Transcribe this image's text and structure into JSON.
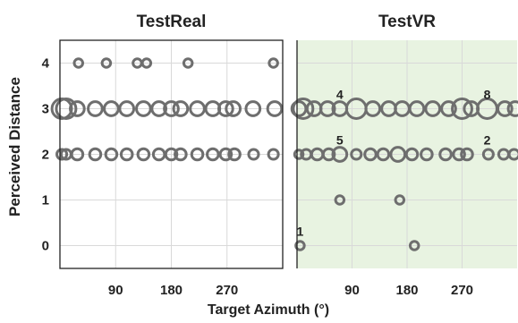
{
  "chart_data": {
    "type": "scatter",
    "ylabel": "Perceived Distance",
    "xlabel": "Target Azimuth (°)",
    "x_ticks": [
      "90",
      "180",
      "270"
    ],
    "y_ticks": [
      "0",
      "1",
      "2",
      "3",
      "4"
    ],
    "xlim": [
      0,
      360
    ],
    "ylim": [
      -0.5,
      4.5
    ],
    "grid": true,
    "marker_color": "#6e6e6e",
    "panels": [
      {
        "title": "TestReal",
        "background": "#ffffff",
        "points": [
          {
            "x": 30,
            "y": 4,
            "size": 1
          },
          {
            "x": 75,
            "y": 4,
            "size": 1
          },
          {
            "x": 125,
            "y": 4,
            "size": 1
          },
          {
            "x": 140,
            "y": 4,
            "size": 1
          },
          {
            "x": 207,
            "y": 4,
            "size": 1
          },
          {
            "x": 345,
            "y": 4,
            "size": 1
          },
          {
            "x": 3,
            "y": 3,
            "size": 5
          },
          {
            "x": 10,
            "y": 3,
            "size": 5
          },
          {
            "x": 28,
            "y": 3,
            "size": 3
          },
          {
            "x": 57,
            "y": 3,
            "size": 3
          },
          {
            "x": 83,
            "y": 3,
            "size": 3
          },
          {
            "x": 108,
            "y": 3,
            "size": 3
          },
          {
            "x": 135,
            "y": 3,
            "size": 3
          },
          {
            "x": 160,
            "y": 3,
            "size": 3
          },
          {
            "x": 180,
            "y": 3,
            "size": 3
          },
          {
            "x": 195,
            "y": 3,
            "size": 3
          },
          {
            "x": 222,
            "y": 3,
            "size": 3
          },
          {
            "x": 247,
            "y": 3,
            "size": 3
          },
          {
            "x": 268,
            "y": 3,
            "size": 3
          },
          {
            "x": 280,
            "y": 3,
            "size": 3
          },
          {
            "x": 312,
            "y": 3,
            "size": 3
          },
          {
            "x": 347,
            "y": 3,
            "size": 3
          },
          {
            "x": 3,
            "y": 2,
            "size": 1.5
          },
          {
            "x": 10,
            "y": 2,
            "size": 1.5
          },
          {
            "x": 28,
            "y": 2,
            "size": 2
          },
          {
            "x": 57,
            "y": 2,
            "size": 2
          },
          {
            "x": 83,
            "y": 2,
            "size": 2
          },
          {
            "x": 108,
            "y": 2,
            "size": 2
          },
          {
            "x": 135,
            "y": 2,
            "size": 2
          },
          {
            "x": 160,
            "y": 2,
            "size": 2
          },
          {
            "x": 180,
            "y": 2,
            "size": 2
          },
          {
            "x": 195,
            "y": 2,
            "size": 2
          },
          {
            "x": 222,
            "y": 2,
            "size": 2
          },
          {
            "x": 247,
            "y": 2,
            "size": 2
          },
          {
            "x": 268,
            "y": 2,
            "size": 2
          },
          {
            "x": 282,
            "y": 2,
            "size": 2
          },
          {
            "x": 313,
            "y": 2,
            "size": 1.5
          },
          {
            "x": 345,
            "y": 2,
            "size": 1.5
          }
        ],
        "annotations": []
      },
      {
        "title": "TestVR",
        "background": "#e8f3e1",
        "points": [
          {
            "x": 3,
            "y": 3,
            "size": 3
          },
          {
            "x": 10,
            "y": 3,
            "size": 5
          },
          {
            "x": 28,
            "y": 3,
            "size": 3
          },
          {
            "x": 50,
            "y": 3,
            "size": 3
          },
          {
            "x": 70,
            "y": 3,
            "size": 3
          },
          {
            "x": 97,
            "y": 3,
            "size": 5
          },
          {
            "x": 124,
            "y": 3,
            "size": 3
          },
          {
            "x": 150,
            "y": 3,
            "size": 3
          },
          {
            "x": 172,
            "y": 3,
            "size": 3
          },
          {
            "x": 196,
            "y": 3,
            "size": 3
          },
          {
            "x": 222,
            "y": 3,
            "size": 3
          },
          {
            "x": 248,
            "y": 3,
            "size": 3
          },
          {
            "x": 270,
            "y": 3,
            "size": 5
          },
          {
            "x": 285,
            "y": 3,
            "size": 3
          },
          {
            "x": 311,
            "y": 3,
            "size": 5
          },
          {
            "x": 340,
            "y": 3,
            "size": 3
          },
          {
            "x": 357,
            "y": 3,
            "size": 3
          },
          {
            "x": 3,
            "y": 2,
            "size": 1
          },
          {
            "x": 15,
            "y": 2,
            "size": 1.5
          },
          {
            "x": 33,
            "y": 2,
            "size": 2
          },
          {
            "x": 52,
            "y": 2,
            "size": 2
          },
          {
            "x": 70,
            "y": 2,
            "size": 3
          },
          {
            "x": 97,
            "y": 2,
            "size": 1.5
          },
          {
            "x": 120,
            "y": 2,
            "size": 2
          },
          {
            "x": 141,
            "y": 2,
            "size": 2
          },
          {
            "x": 165,
            "y": 2,
            "size": 3
          },
          {
            "x": 188,
            "y": 2,
            "size": 2
          },
          {
            "x": 212,
            "y": 2,
            "size": 2
          },
          {
            "x": 243,
            "y": 2,
            "size": 2
          },
          {
            "x": 265,
            "y": 2,
            "size": 2
          },
          {
            "x": 278,
            "y": 2,
            "size": 2
          },
          {
            "x": 313,
            "y": 2,
            "size": 1.5
          },
          {
            "x": 338,
            "y": 2,
            "size": 1.5
          },
          {
            "x": 355,
            "y": 2,
            "size": 1.5
          },
          {
            "x": 70,
            "y": 1,
            "size": 1
          },
          {
            "x": 168,
            "y": 1,
            "size": 1
          },
          {
            "x": 5,
            "y": 0,
            "size": 1
          },
          {
            "x": 192,
            "y": 0,
            "size": 1
          }
        ],
        "annotations": [
          {
            "text": "4",
            "x": 70,
            "y": 3
          },
          {
            "text": "8",
            "x": 311,
            "y": 3
          },
          {
            "text": "5",
            "x": 70,
            "y": 2
          },
          {
            "text": "2",
            "x": 311,
            "y": 2
          },
          {
            "text": "1",
            "x": 5,
            "y": 0
          }
        ]
      }
    ]
  }
}
